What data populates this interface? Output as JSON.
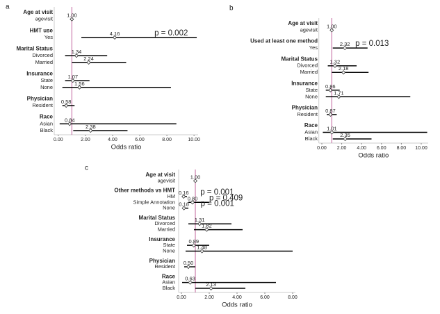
{
  "chart_data": [
    {
      "type": "forest",
      "panel": "a",
      "xlabel": "Odds ratio",
      "xlim": [
        -0.3,
        10.3
      ],
      "ref_line": 1,
      "ref_color": "#c0609a",
      "xticks": [
        {
          "value": 0,
          "label": "0.00"
        },
        {
          "value": 2,
          "label": "2.00"
        },
        {
          "value": 4,
          "label": "4.00"
        },
        {
          "value": 6,
          "label": "6.00"
        },
        {
          "value": 8,
          "label": "8.00"
        },
        {
          "value": 10,
          "label": "10.00"
        }
      ],
      "groups": [
        {
          "title": "Age at visit",
          "rows": [
            {
              "label": "agevisit",
              "value": 1,
              "value_label": "1.00",
              "lower": 1,
              "upper": 1
            }
          ]
        },
        {
          "title": "HMT use",
          "rows": [
            {
              "label": "Yes",
              "value": 4.16,
              "value_label": "4.16",
              "lower": 1.7,
              "upper": 10.2,
              "annotation": "p = 0.002"
            }
          ]
        },
        {
          "title": "Marital Status",
          "rows": [
            {
              "label": "Divorced",
              "value": 1.34,
              "value_label": "1.34",
              "lower": 0.5,
              "upper": 3.6
            },
            {
              "label": "Married",
              "value": 2.24,
              "value_label": "2.24",
              "lower": 1.0,
              "upper": 5.0
            }
          ]
        },
        {
          "title": "Insurance",
          "rows": [
            {
              "label": "State",
              "value": 1.07,
              "value_label": "1.07",
              "lower": 0.5,
              "upper": 2.3
            },
            {
              "label": "None",
              "value": 1.56,
              "value_label": "1.56",
              "lower": 0.3,
              "upper": 8.3
            }
          ]
        },
        {
          "title": "Physician",
          "rows": [
            {
              "label": "Resident",
              "value": 0.58,
              "value_label": "0.58",
              "lower": 0.3,
              "upper": 1.2
            }
          ]
        },
        {
          "title": "Race",
          "rows": [
            {
              "label": "Asian",
              "value": 0.84,
              "value_label": "0.84",
              "lower": 0.1,
              "upper": 8.7
            },
            {
              "label": "Black",
              "value": 2.38,
              "value_label": "2.38",
              "lower": 1.1,
              "upper": 5.1
            }
          ]
        }
      ]
    },
    {
      "type": "forest",
      "panel": "b",
      "xlabel": "Odds ratio",
      "xlim": [
        -0.3,
        10.7
      ],
      "ref_line": 1,
      "ref_color": "#c0609a",
      "xticks": [
        {
          "value": 0,
          "label": "0.00"
        },
        {
          "value": 2,
          "label": "2.00"
        },
        {
          "value": 4,
          "label": "4.00"
        },
        {
          "value": 6,
          "label": "6.00"
        },
        {
          "value": 8,
          "label": "8.00"
        },
        {
          "value": 10,
          "label": "10.00"
        }
      ],
      "groups": [
        {
          "title": "Age at visit",
          "rows": [
            {
              "label": "agevisit",
              "value": 1,
              "value_label": "1.00",
              "lower": 1,
              "upper": 1
            }
          ]
        },
        {
          "title": "Used at least one method",
          "rows": [
            {
              "label": "Yes",
              "value": 2.32,
              "value_label": "2.32",
              "lower": 1.1,
              "upper": 4.6,
              "annotation": "p = 0.013"
            }
          ]
        },
        {
          "title": "Marital Status",
          "rows": [
            {
              "label": "Divorced",
              "value": 1.32,
              "value_label": "1.32",
              "lower": 0.6,
              "upper": 3.5
            },
            {
              "label": "Married",
              "value": 2.18,
              "value_label": "2.18",
              "lower": 1.0,
              "upper": 4.7
            }
          ]
        },
        {
          "title": "Insurance",
          "rows": [
            {
              "label": "State",
              "value": 0.86,
              "value_label": "0.86",
              "lower": 0.4,
              "upper": 1.8
            },
            {
              "label": "None",
              "value": 1.71,
              "value_label": "1.71",
              "lower": 0.4,
              "upper": 8.9
            }
          ]
        },
        {
          "title": "Physician",
          "rows": [
            {
              "label": "Resident",
              "value": 0.87,
              "value_label": "0.87",
              "lower": 0.5,
              "upper": 1.5
            }
          ]
        },
        {
          "title": "Race",
          "rows": [
            {
              "label": "Asian",
              "value": 1.01,
              "value_label": "1.01",
              "lower": 0.1,
              "upper": 10.6
            },
            {
              "label": "Black",
              "value": 2.35,
              "value_label": "2.35",
              "lower": 1.1,
              "upper": 5.0
            }
          ]
        }
      ]
    },
    {
      "type": "forest",
      "panel": "c",
      "xlabel": "Odds ratio",
      "xlim": [
        -0.2,
        8.2
      ],
      "ref_line": 1,
      "ref_color": "#c0609a",
      "xticks": [
        {
          "value": 0,
          "label": "0.00"
        },
        {
          "value": 2,
          "label": "2.00"
        },
        {
          "value": 4,
          "label": "4.00"
        },
        {
          "value": 6,
          "label": "6.00"
        },
        {
          "value": 8,
          "label": "8.00"
        }
      ],
      "groups": [
        {
          "title": "Age at visit",
          "rows": [
            {
              "label": "agevisit",
              "value": 1,
              "value_label": "1.00",
              "lower": 1,
              "upper": 1
            }
          ]
        },
        {
          "title": "Other methods vs HMT",
          "rows": [
            {
              "label": "HM",
              "value": 0.16,
              "value_label": "0.16",
              "lower": 0.05,
              "upper": 0.4,
              "annotation": "p = 0.001"
            },
            {
              "label": "Simple Annotation",
              "value": 0.8,
              "value_label": "0.80",
              "lower": 0.5,
              "upper": 2.0,
              "annotation": "p = 0.409"
            },
            {
              "label": "None",
              "value": 0.18,
              "value_label": "0.18",
              "lower": 0.1,
              "upper": 0.5,
              "annotation": "p = 0.001"
            }
          ]
        },
        {
          "title": "Marital Status",
          "rows": [
            {
              "label": "Divorced",
              "value": 1.31,
              "value_label": "1.31",
              "lower": 0.5,
              "upper": 3.6
            },
            {
              "label": "Married",
              "value": 1.82,
              "value_label": "1.82",
              "lower": 0.9,
              "upper": 4.4
            }
          ]
        },
        {
          "title": "Insurance",
          "rows": [
            {
              "label": "State",
              "value": 0.89,
              "value_label": "0.89",
              "lower": 0.4,
              "upper": 2.0
            },
            {
              "label": "None",
              "value": 1.48,
              "value_label": "1.48",
              "lower": 0.3,
              "upper": 8.0
            }
          ]
        },
        {
          "title": "Physician",
          "rows": [
            {
              "label": "Resident",
              "value": 0.5,
              "value_label": "0.50",
              "lower": 0.2,
              "upper": 1.0
            }
          ]
        },
        {
          "title": "Race",
          "rows": [
            {
              "label": "Asian",
              "value": 0.63,
              "value_label": "0.63",
              "lower": 0.05,
              "upper": 6.8
            },
            {
              "label": "Black",
              "value": 2.13,
              "value_label": "2.13",
              "lower": 1.0,
              "upper": 4.6
            }
          ]
        }
      ]
    }
  ]
}
